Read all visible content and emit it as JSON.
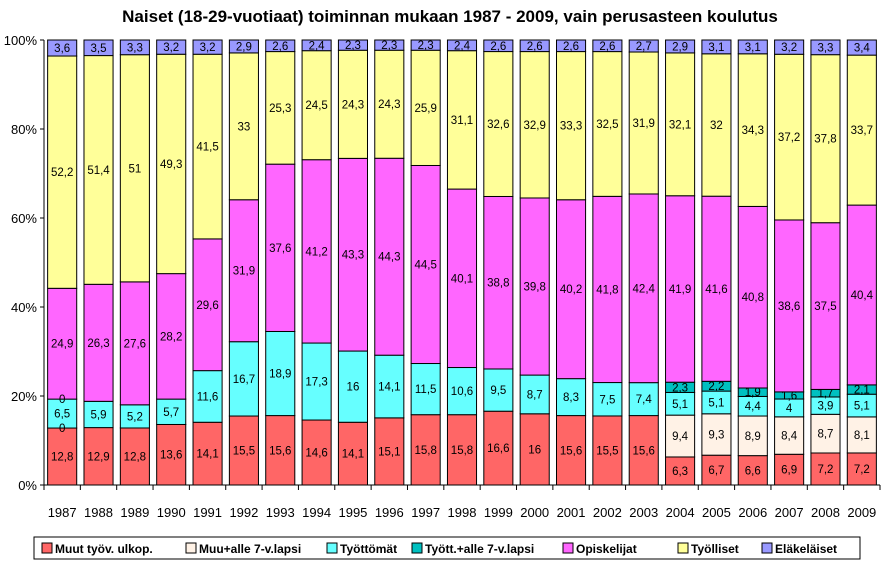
{
  "chart_data": {
    "type": "bar",
    "stacked": true,
    "percent": true,
    "title": "Naiset (18-29-vuotiaat) toiminnan mukaan 1987 - 2009, vain perusasteen koulutus",
    "xlabel": "",
    "ylabel": "",
    "ylim": [
      0,
      100
    ],
    "y_ticks": [
      "0%",
      "20%",
      "40%",
      "60%",
      "80%",
      "100%"
    ],
    "grid": false,
    "legend_position": "bottom",
    "categories": [
      "1987",
      "1988",
      "1989",
      "1990",
      "1991",
      "1992",
      "1993",
      "1994",
      "1995",
      "1996",
      "1997",
      "1998",
      "1999",
      "2000",
      "2001",
      "2002",
      "2003",
      "2004",
      "2005",
      "2006",
      "2007",
      "2008",
      "2009"
    ],
    "series": [
      {
        "name": "Muut työv. ulkop.",
        "color": "#ff6666",
        "values": [
          12.8,
          12.9,
          12.8,
          13.6,
          14.1,
          15.5,
          15.6,
          14.6,
          14.1,
          15.1,
          15.8,
          15.8,
          16.6,
          16,
          15.6,
          15.5,
          15.6,
          6.3,
          6.7,
          6.6,
          6.9,
          7.2,
          7.2
        ]
      },
      {
        "name": "Muu+alle 7-v.lapsi",
        "color": "#fff2e6",
        "values": [
          0,
          0,
          0,
          0,
          0,
          0,
          0,
          0,
          0,
          0,
          0,
          0,
          0,
          0,
          0,
          0,
          0,
          9.4,
          9.3,
          8.9,
          8.4,
          8.7,
          8.1
        ]
      },
      {
        "name": "Työttömät",
        "color": "#66ffff",
        "values": [
          6.5,
          5.9,
          5.2,
          5.7,
          11.6,
          16.7,
          18.9,
          17.3,
          16,
          14.1,
          11.5,
          10.6,
          9.5,
          8.7,
          8.3,
          7.5,
          7.4,
          5.1,
          5.1,
          4.4,
          4,
          3.9,
          5.1
        ]
      },
      {
        "name": "Tyött.+alle 7-v.lapsi",
        "color": "#00c0c0",
        "values": [
          0,
          0,
          0,
          0,
          0,
          0,
          0,
          0,
          0,
          0,
          0,
          0,
          0,
          0,
          0,
          0,
          0,
          2.3,
          2.2,
          1.9,
          1.6,
          1.7,
          2.1
        ]
      },
      {
        "name": "Opiskelijat",
        "color": "#ff66ff",
        "values": [
          24.9,
          26.3,
          27.6,
          28.2,
          29.6,
          31.9,
          37.6,
          41.2,
          43.3,
          44.3,
          44.5,
          40.1,
          38.8,
          39.8,
          40.2,
          41.8,
          42.4,
          41.9,
          41.6,
          40.8,
          38.6,
          37.5,
          40.4
        ]
      },
      {
        "name": "Työlliset",
        "color": "#ffff99",
        "values": [
          52.2,
          51.4,
          51,
          49.3,
          41.5,
          33,
          25.3,
          24.5,
          24.3,
          24.3,
          25.9,
          31.1,
          32.6,
          32.9,
          33.3,
          32.5,
          31.9,
          32.1,
          32,
          34.3,
          37.2,
          37.8,
          33.7
        ]
      },
      {
        "name": "Eläkeläiset",
        "color": "#9999ff",
        "values": [
          3.6,
          3.5,
          3.3,
          3.2,
          3.2,
          2.9,
          2.6,
          2.4,
          2.3,
          2.3,
          2.3,
          2.4,
          2.6,
          2.6,
          2.6,
          2.6,
          2.7,
          2.9,
          3.1,
          3.1,
          3.2,
          3.3,
          3.4
        ]
      }
    ],
    "zero_labels": {
      "note_visible": [
        "0",
        "0",
        "0"
      ]
    }
  }
}
